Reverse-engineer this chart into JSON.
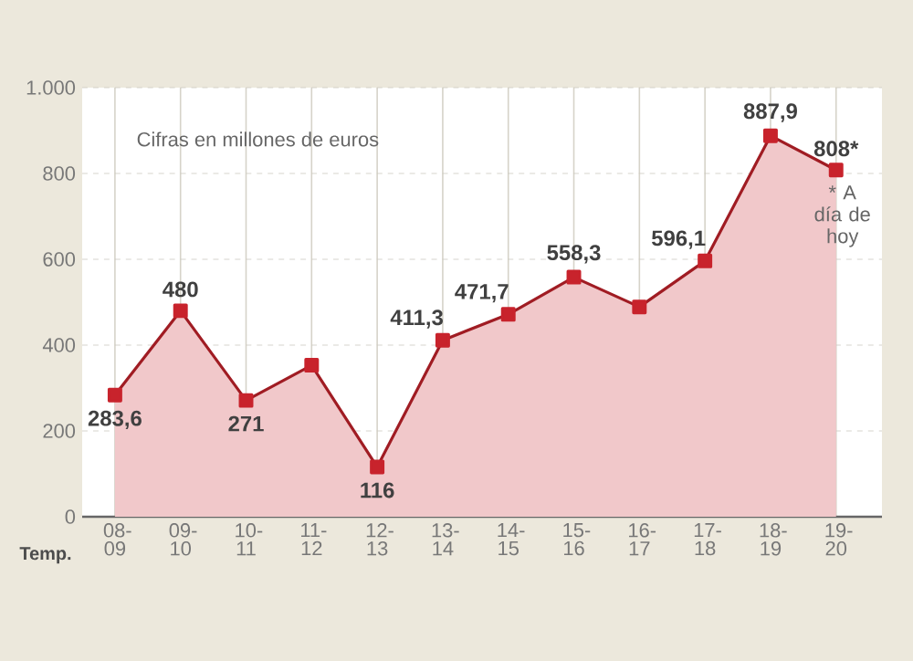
{
  "chart_data": {
    "type": "area",
    "xlabel": "Temp.",
    "annotations": [
      "Cifras en millones de euros",
      "* A día de hoy"
    ],
    "categories": [
      "08-09",
      "09-10",
      "10-11",
      "11-12",
      "12-13",
      "13-14",
      "14-15",
      "15-16",
      "16-17",
      "17-18",
      "18-19",
      "19-20"
    ],
    "values": [
      283.6,
      480,
      271,
      353,
      116,
      411.3,
      471.7,
      558.3,
      489,
      596.1,
      887.9,
      808
    ],
    "value_labels": [
      "283,6",
      "480",
      "271",
      null,
      "116",
      "411,3",
      "471,7",
      "558,3",
      null,
      "596,1",
      "887,9",
      "808*"
    ],
    "color": "#c8232c",
    "marker": "square",
    "grid": true,
    "ylim": [
      0,
      1000
    ],
    "yticks": [
      0,
      200,
      400,
      600,
      800,
      {
        "value": 1000,
        "label": "1.000"
      }
    ]
  }
}
